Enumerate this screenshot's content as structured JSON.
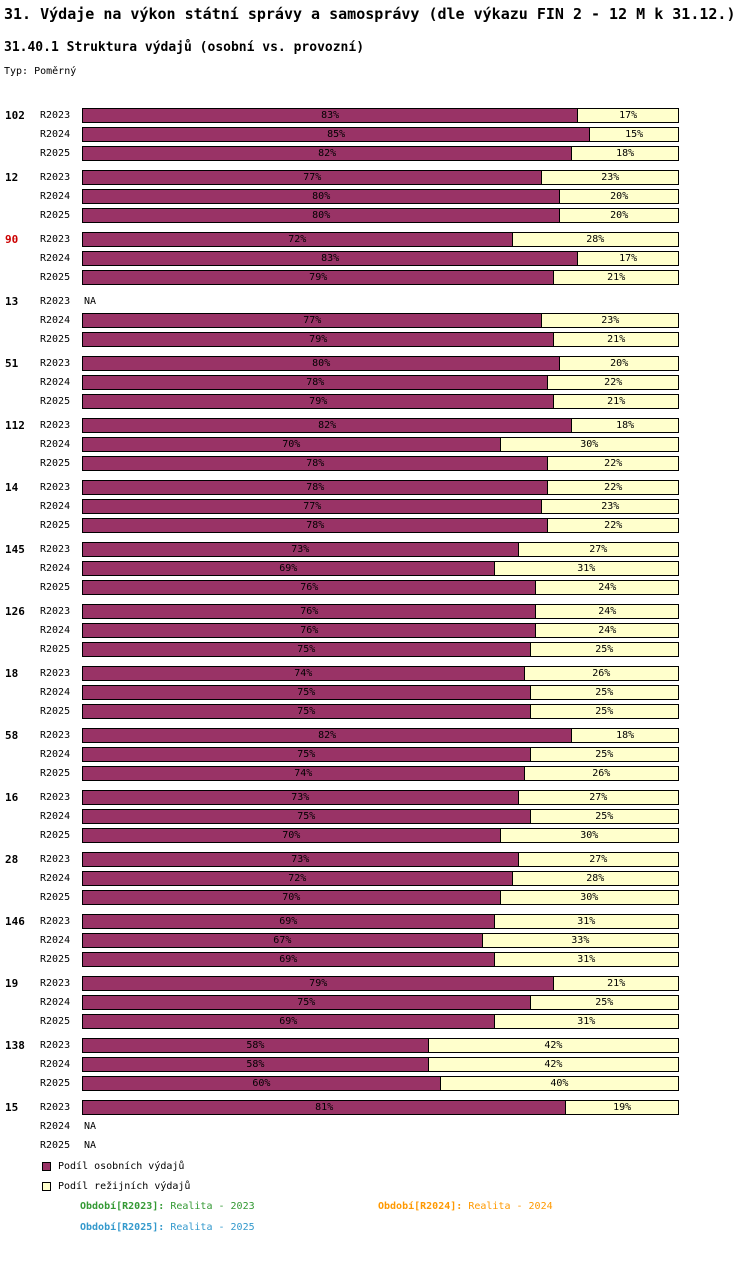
{
  "na_label": "NA",
  "colors": {
    "personal": "#993366",
    "overhead": "#FFFFCC",
    "bar_border": "#000000",
    "highlight_group": "#CC0000",
    "r2023": "#339933",
    "r2024": "#FF9900",
    "r2025": "#3399CC"
  },
  "legend": [
    {
      "key": "personal",
      "label": "Podíl osobních výdajů"
    },
    {
      "key": "overhead",
      "label": "Podíl režijních výdajů"
    }
  ],
  "footnotes": [
    {
      "prefix": "Období[R2023]:",
      "text": "Realita - 2023",
      "color_key": "r2023"
    },
    {
      "prefix": "Období[R2024]:",
      "text": "Realita - 2024",
      "color_key": "r2024"
    },
    {
      "prefix": "Období[R2025]:",
      "text": "Realita - 2025",
      "color_key": "r2025"
    }
  ],
  "chart_data": {
    "type": "bar",
    "stacked": true,
    "orientation": "horizontal",
    "title": "31. Výdaje na výkon státní správy a samosprávy (dle výkazu FIN 2 - 12 M k 31.12.)",
    "subtitle": "31.40.1 Struktura výdajů (osobní vs. provozní)",
    "type_note": "Typ: Poměrný",
    "unit": "%",
    "x_range": [
      0,
      100
    ],
    "grid": false,
    "legend_position": "bottom-left",
    "series": [
      "Podíl osobních výdajů",
      "Podíl režijních výdajů"
    ],
    "periods": [
      "R2023",
      "R2024",
      "R2025"
    ],
    "groups": [
      {
        "id": "102",
        "highlight": false,
        "values": [
          [
            83,
            17
          ],
          [
            85,
            15
          ],
          [
            82,
            18
          ]
        ]
      },
      {
        "id": "12",
        "highlight": false,
        "values": [
          [
            77,
            23
          ],
          [
            80,
            20
          ],
          [
            80,
            20
          ]
        ]
      },
      {
        "id": "90",
        "highlight": true,
        "values": [
          [
            72,
            28
          ],
          [
            83,
            17
          ],
          [
            79,
            21
          ]
        ]
      },
      {
        "id": "13",
        "highlight": false,
        "values": [
          null,
          [
            77,
            23
          ],
          [
            79,
            21
          ]
        ]
      },
      {
        "id": "51",
        "highlight": false,
        "values": [
          [
            80,
            20
          ],
          [
            78,
            22
          ],
          [
            79,
            21
          ]
        ]
      },
      {
        "id": "112",
        "highlight": false,
        "values": [
          [
            82,
            18
          ],
          [
            70,
            30
          ],
          [
            78,
            22
          ]
        ]
      },
      {
        "id": "14",
        "highlight": false,
        "values": [
          [
            78,
            22
          ],
          [
            77,
            23
          ],
          [
            78,
            22
          ]
        ]
      },
      {
        "id": "145",
        "highlight": false,
        "values": [
          [
            73,
            27
          ],
          [
            69,
            31
          ],
          [
            76,
            24
          ]
        ]
      },
      {
        "id": "126",
        "highlight": false,
        "values": [
          [
            76,
            24
          ],
          [
            76,
            24
          ],
          [
            75,
            25
          ]
        ]
      },
      {
        "id": "18",
        "highlight": false,
        "values": [
          [
            74,
            26
          ],
          [
            75,
            25
          ],
          [
            75,
            25
          ]
        ]
      },
      {
        "id": "58",
        "highlight": false,
        "values": [
          [
            82,
            18
          ],
          [
            75,
            25
          ],
          [
            74,
            26
          ]
        ]
      },
      {
        "id": "16",
        "highlight": false,
        "values": [
          [
            73,
            27
          ],
          [
            75,
            25
          ],
          [
            70,
            30
          ]
        ]
      },
      {
        "id": "28",
        "highlight": false,
        "values": [
          [
            73,
            27
          ],
          [
            72,
            28
          ],
          [
            70,
            30
          ]
        ]
      },
      {
        "id": "146",
        "highlight": false,
        "values": [
          [
            69,
            31
          ],
          [
            67,
            33
          ],
          [
            69,
            31
          ]
        ]
      },
      {
        "id": "19",
        "highlight": false,
        "values": [
          [
            79,
            21
          ],
          [
            75,
            25
          ],
          [
            69,
            31
          ]
        ]
      },
      {
        "id": "138",
        "highlight": false,
        "values": [
          [
            58,
            42
          ],
          [
            58,
            42
          ],
          [
            60,
            40
          ]
        ]
      },
      {
        "id": "15",
        "highlight": false,
        "values": [
          [
            81,
            19
          ],
          null,
          null
        ]
      }
    ]
  }
}
